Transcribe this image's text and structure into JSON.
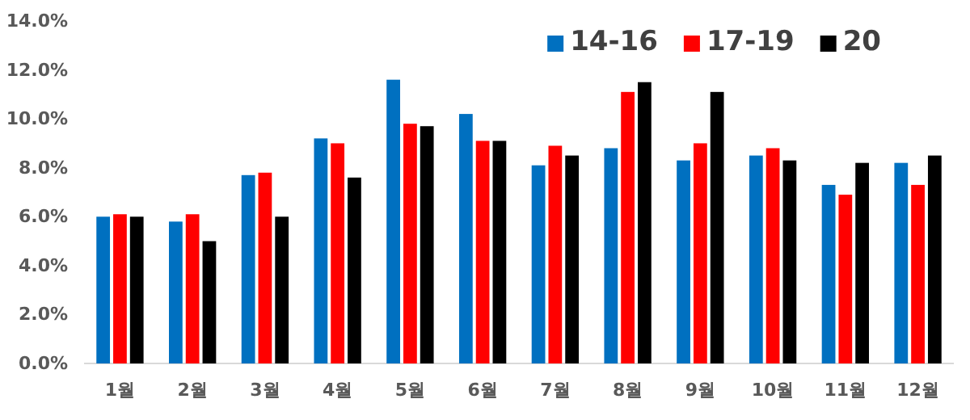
{
  "chart_data": {
    "type": "bar",
    "categories": [
      "1월",
      "2월",
      "3월",
      "4월",
      "5월",
      "6월",
      "7월",
      "8월",
      "9월",
      "10월",
      "11월",
      "12월"
    ],
    "series": [
      {
        "name": "14-16",
        "color": "#0070c0",
        "values": [
          6.0,
          5.8,
          7.7,
          9.2,
          11.6,
          10.2,
          8.1,
          8.8,
          8.3,
          8.5,
          7.3,
          8.2
        ]
      },
      {
        "name": "17-19",
        "color": "#ff0000",
        "values": [
          6.1,
          6.1,
          7.8,
          9.0,
          9.8,
          9.1,
          8.9,
          11.1,
          9.0,
          8.8,
          6.9,
          7.3
        ]
      },
      {
        "name": "20",
        "color": "#000000",
        "values": [
          6.0,
          5.0,
          6.0,
          7.6,
          9.7,
          9.1,
          8.5,
          11.5,
          11.1,
          8.3,
          8.2,
          8.5
        ]
      }
    ],
    "ylim": [
      0,
      14
    ],
    "yticks": [
      {
        "value": 0,
        "label": "0.0%"
      },
      {
        "value": 2,
        "label": "2.0%"
      },
      {
        "value": 4,
        "label": "4.0%"
      },
      {
        "value": 6,
        "label": "6.0%"
      },
      {
        "value": 8,
        "label": "8.0%"
      },
      {
        "value": 10,
        "label": "10.0%"
      },
      {
        "value": 12,
        "label": "12.0%"
      },
      {
        "value": 14,
        "label": "14.0%"
      }
    ],
    "grid": false,
    "legend": "top right"
  }
}
